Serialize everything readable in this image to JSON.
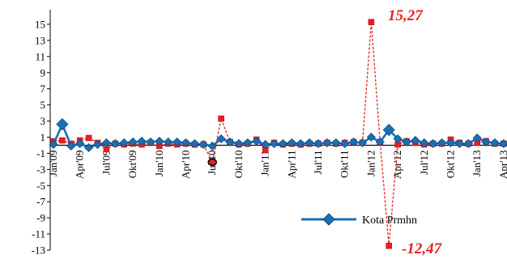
{
  "chart_data": {
    "type": "line",
    "title": "",
    "xlabel": "",
    "ylabel": "",
    "ylim": [
      -13,
      16
    ],
    "yticks": [
      15,
      13,
      11,
      9,
      7,
      5,
      3,
      1,
      -1,
      -3,
      -5,
      -7,
      -9,
      -11,
      -13
    ],
    "x": [
      "Jan'09",
      "Feb'09",
      "Mar'09",
      "Apr'09",
      "May'09",
      "Jun'09",
      "Jul'09",
      "Aug'09",
      "Sep'09",
      "Okt'09",
      "Nov'09",
      "Dec'09",
      "Jan'10",
      "Feb'10",
      "Mar'10",
      "Apr'10",
      "May'10",
      "Jun'10",
      "Jul'10",
      "Aug'10",
      "Sep'10",
      "Okt'10",
      "Nov'10",
      "Dec'10",
      "Jan'11",
      "Feb'11",
      "Mar'11",
      "Apr'11",
      "May'11",
      "Jun'11",
      "Jul'11",
      "Aug'11",
      "Sep'11",
      "Okt'11",
      "Nov'11",
      "Dec'11",
      "Jan'12",
      "Feb'12",
      "Mar'12",
      "Apr'12",
      "May'12",
      "Jun'12",
      "Jul'12",
      "Aug'12",
      "Sep'12",
      "Okt'12",
      "Nov'12",
      "Dec'12",
      "Jan'13",
      "Feb'13",
      "Mar'13",
      "Apr'13"
    ],
    "xtick_labels": [
      "Jan'09",
      "Apr'09",
      "Jul'09",
      "Okt'09",
      "Jan'10",
      "Apr'10",
      "Jul'10",
      "Okt'10",
      "Jan'11",
      "Apr'11",
      "Jul'11",
      "Okt'11",
      "Jan'12",
      "Apr'12",
      "Jul'12",
      "Okt'12",
      "Jan'13",
      "Apr'13"
    ],
    "series": [
      {
        "name": "Kota Prmhn",
        "color": "#1a6fb5",
        "marker": "diamond",
        "values": [
          0.1,
          2.6,
          -0.1,
          0.2,
          -0.3,
          0.1,
          0.3,
          0.2,
          0.3,
          0.4,
          0.5,
          0.4,
          0.5,
          0.4,
          0.4,
          0.3,
          0.2,
          0.1,
          -0.1,
          0.8,
          0.4,
          0.2,
          0.3,
          0.5,
          0.1,
          0.2,
          0.2,
          0.3,
          0.2,
          0.3,
          0.2,
          0.3,
          0.3,
          0.2,
          0.4,
          0.3,
          1.0,
          0.4,
          1.9,
          0.8,
          0.4,
          0.6,
          0.3,
          0.2,
          0.3,
          0.3,
          0.2,
          0.2,
          0.9,
          0.4,
          0.3,
          0.2
        ]
      },
      {
        "name": "",
        "color": "#e8201f",
        "marker": "square",
        "dashed": true,
        "values": [
          0.5,
          0.6,
          0.2,
          0.6,
          0.9,
          0.3,
          -0.5,
          0.2,
          0.1,
          0.2,
          0.1,
          0.3,
          -0.1,
          0.2,
          0.1,
          0.2,
          0.1,
          0.1,
          -2.1,
          3.3,
          0.4,
          0.1,
          0.2,
          0.7,
          -0.6,
          0.3,
          0.1,
          0.2,
          0.1,
          0.2,
          0.2,
          0.3,
          0.2,
          0.3,
          0.4,
          0.3,
          15.27,
          0.4,
          -12.47,
          0.1,
          0.5,
          0.3,
          0.1,
          0.2,
          0.2,
          0.7,
          0.3,
          0.2,
          0.3,
          0.5,
          0.2,
          0.2
        ]
      }
    ],
    "annotations": [
      "15,27",
      "-12,47"
    ],
    "legend_position": "lower-right"
  }
}
